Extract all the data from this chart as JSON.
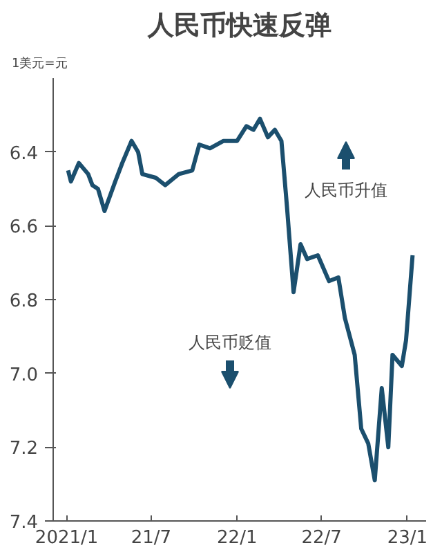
{
  "chart_data": {
    "type": "line",
    "title": "人民币快速反弹",
    "ylabel": "1美元=元",
    "x": [
      "2021-01-04",
      "2021-01-10",
      "2021-01-27",
      "2021-02-16",
      "2021-02-25",
      "2021-03-09",
      "2021-03-23",
      "2021-04-15",
      "2021-04-30",
      "2021-05-20",
      "2021-06-03",
      "2021-06-12",
      "2021-07-11",
      "2021-07-31",
      "2021-08-29",
      "2021-09-27",
      "2021-10-12",
      "2021-11-04",
      "2021-12-03",
      "2022-01-01",
      "2022-01-21",
      "2022-02-05",
      "2022-02-19",
      "2022-03-08",
      "2022-03-23",
      "2022-04-06",
      "2022-04-18",
      "2022-04-29",
      "2022-05-02",
      "2022-05-17",
      "2022-05-31",
      "2022-06-23",
      "2022-07-17",
      "2022-08-06",
      "2022-08-20",
      "2022-09-10",
      "2022-09-24",
      "2022-10-09",
      "2022-10-23",
      "2022-11-07",
      "2022-11-21",
      "2022-11-30",
      "2022-12-20",
      "2022-12-29",
      "2023-01-12"
    ],
    "series": [
      {
        "color": "#1b4f6e",
        "values": [
          6.45,
          6.48,
          6.43,
          6.46,
          6.49,
          6.5,
          6.56,
          6.48,
          6.43,
          6.37,
          6.4,
          6.46,
          6.47,
          6.49,
          6.46,
          6.45,
          6.38,
          6.39,
          6.37,
          6.37,
          6.33,
          6.34,
          6.31,
          6.36,
          6.34,
          6.37,
          6.55,
          6.73,
          6.78,
          6.65,
          6.69,
          6.68,
          6.75,
          6.74,
          6.85,
          6.95,
          7.15,
          7.19,
          7.29,
          7.04,
          7.2,
          6.95,
          6.98,
          6.91,
          6.68
        ]
      }
    ],
    "ylim": [
      7.4,
      6.2
    ],
    "yticks": [
      6.4,
      6.6,
      6.8,
      {
        "value": 7,
        "label": "7.0"
      },
      7.2,
      7.4
    ],
    "xlim": [
      "2020-12-03",
      "2023-02-10"
    ],
    "xticks": [
      {
        "value": "2021-01-01",
        "label": "2021/1"
      },
      {
        "value": "2021-07-01",
        "label": "21/7"
      },
      {
        "value": "2022-01-01",
        "label": "22/1"
      },
      {
        "value": "2022-07-01",
        "label": "22/7"
      },
      {
        "value": "2023-01-01",
        "label": "23/1"
      }
    ],
    "annotations": [
      "人民币升值",
      "人民币贬值"
    ],
    "grid": false,
    "marker": "none",
    "line_style": "solid"
  }
}
